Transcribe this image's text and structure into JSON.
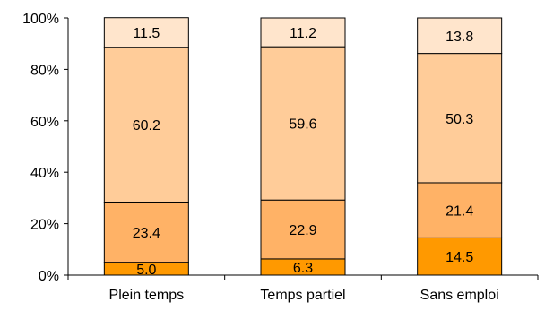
{
  "chart_data": {
    "type": "bar",
    "stacked": true,
    "categories": [
      "Plein temps",
      "Temps partiel",
      "Sans emploi"
    ],
    "series": [
      {
        "values": [
          5.0,
          6.3,
          14.5
        ],
        "color": "#ff9900"
      },
      {
        "values": [
          23.4,
          22.9,
          21.4
        ],
        "color": "#ffb266"
      },
      {
        "values": [
          60.2,
          59.6,
          50.3
        ],
        "color": "#ffcc99"
      },
      {
        "values": [
          11.5,
          11.2,
          13.8
        ],
        "color": "#ffe5cc"
      }
    ],
    "value_labels": [
      [
        "5.0",
        "6.3",
        "14.5"
      ],
      [
        "23.4",
        "22.9",
        "21.4"
      ],
      [
        "60.2",
        "59.6",
        "50.3"
      ],
      [
        "11.5",
        "11.2",
        "13.8"
      ]
    ],
    "yticks": [
      "0%",
      "20%",
      "40%",
      "60%",
      "80%",
      "100%"
    ],
    "ylim": [
      0,
      100
    ],
    "title": "",
    "xlabel": "",
    "ylabel": "",
    "grid": false,
    "legend": "none"
  }
}
